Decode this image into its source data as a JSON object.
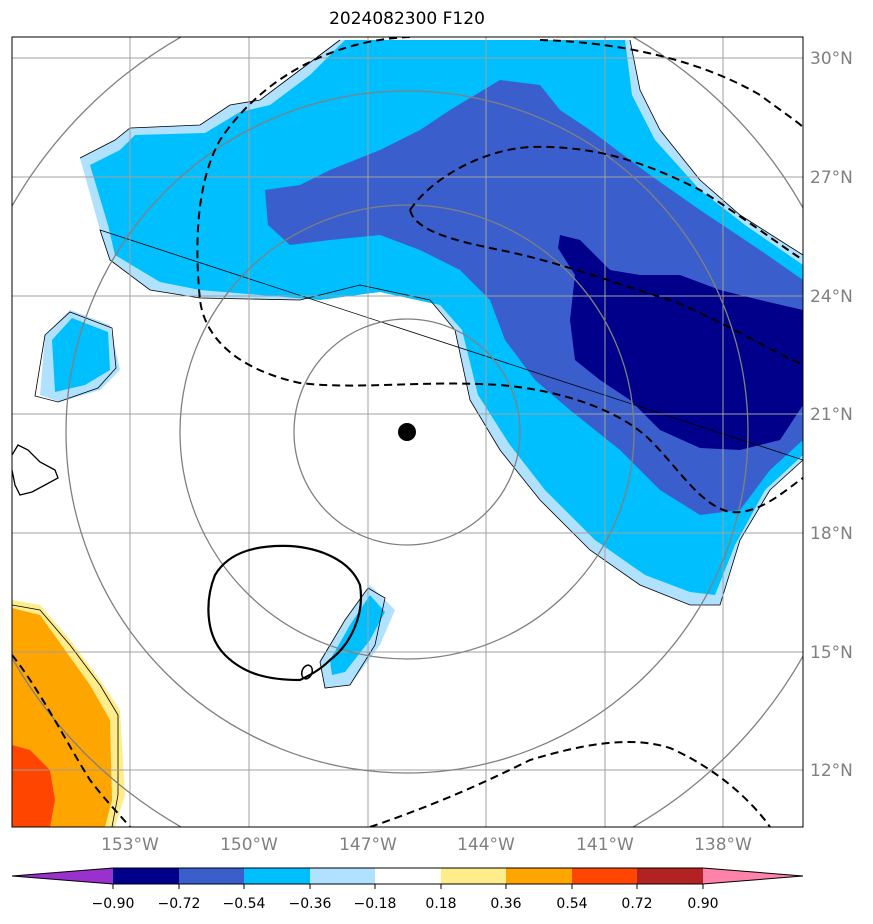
{
  "title": "2024082300 F120",
  "colors": {
    "purple": "#9932CC",
    "navy": "#00008B",
    "royal": "#3A5FCD",
    "deep_sky": "#00BFFF",
    "light_blue": "#B0E2FF",
    "white": "#FFFFFF",
    "light_yellow": "#FFEC8B",
    "orange": "#FFA500",
    "orange_red": "#FF4500",
    "firebrick": "#B22222",
    "pink": "#FF82AB",
    "grid": "#A0A0A0",
    "range_ring": "#808080"
  },
  "lat_labels": [
    "30°N",
    "27°N",
    "24°N",
    "21°N",
    "18°N",
    "15°N",
    "12°N"
  ],
  "lon_labels": [
    "153°W",
    "150°W",
    "147°W",
    "144°W",
    "141°W",
    "138°W"
  ],
  "colorbar": {
    "ticks": [
      "−0.90",
      "−0.72",
      "−0.54",
      "−0.36",
      "−0.18",
      "0.18",
      "0.36",
      "0.54",
      "0.72",
      "0.90"
    ]
  },
  "center_marker": "storm-center"
}
